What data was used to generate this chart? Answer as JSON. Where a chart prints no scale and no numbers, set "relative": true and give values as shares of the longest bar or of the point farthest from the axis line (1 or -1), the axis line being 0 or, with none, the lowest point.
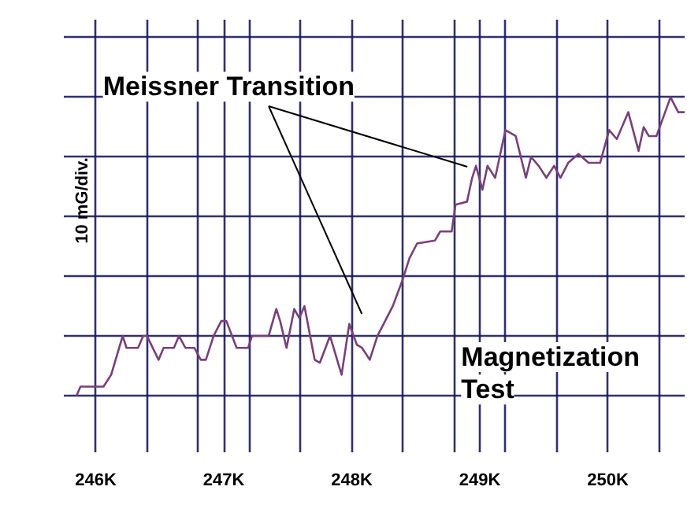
{
  "chart_data": {
    "type": "line",
    "relative": true,
    "ylabel": "10 mG/div.",
    "annotations": [
      "Meissner Transition",
      "Magnetization\nTest"
    ],
    "xlim": [
      245.75,
      250.6
    ],
    "xticks": [
      {
        "value": 246,
        "label": "246K"
      },
      {
        "value": 246.4,
        "label": null
      },
      {
        "value": 246.8,
        "label": null
      },
      {
        "value": 247,
        "label": "247K"
      },
      {
        "value": 247.2,
        "label": null
      },
      {
        "value": 247.6,
        "label": null
      },
      {
        "value": 248,
        "label": "248K"
      },
      {
        "value": 248.4,
        "label": null
      },
      {
        "value": 248.8,
        "label": null
      },
      {
        "value": 249,
        "label": "249K"
      },
      {
        "value": 249.2,
        "label": null
      },
      {
        "value": 249.6,
        "label": null
      },
      {
        "value": 250,
        "label": "250K"
      },
      {
        "value": 250.4,
        "label": null
      }
    ],
    "grid": true,
    "tick_labels": "x",
    "x": [
      245.85,
      245.88,
      246.06,
      246.12,
      246.21,
      246.24,
      246.33,
      246.37,
      246.4,
      246.49,
      246.53,
      246.61,
      246.65,
      246.7,
      246.77,
      246.82,
      246.86,
      246.92,
      246.98,
      247.02,
      247.1,
      247.19,
      247.22,
      247.35,
      247.41,
      247.44,
      247.49,
      247.55,
      247.59,
      247.63,
      247.71,
      247.75,
      247.83,
      247.92,
      247.98,
      248.04,
      248.08,
      248.14,
      248.2,
      248.32,
      248.39,
      248.45,
      248.51,
      248.65,
      248.69,
      248.78,
      248.81,
      248.9,
      248.94,
      248.97,
      249.02,
      249.06,
      249.12,
      249.2,
      249.28,
      249.36,
      249.4,
      249.46,
      249.52,
      249.58,
      249.63,
      249.69,
      249.77,
      249.85,
      249.94,
      250.01,
      250.07,
      250.16,
      250.24,
      250.28,
      250.32,
      250.38,
      250.49,
      250.55,
      250.6
    ],
    "series": [
      {
        "color": "#7a3f7a",
        "values": [
          0,
          0.03,
          0.03,
          0.07,
          0.2,
          0.16,
          0.16,
          0.2,
          0.2,
          0.12,
          0.16,
          0.16,
          0.2,
          0.16,
          0.16,
          0.12,
          0.12,
          0.2,
          0.25,
          0.25,
          0.16,
          0.16,
          0.2,
          0.2,
          0.29,
          0.25,
          0.16,
          0.29,
          0.26,
          0.3,
          0.12,
          0.11,
          0.2,
          0.07,
          0.24,
          0.17,
          0.16,
          0.12,
          0.2,
          0.3,
          0.38,
          0.46,
          0.51,
          0.52,
          0.55,
          0.55,
          0.64,
          0.65,
          0.73,
          0.77,
          0.69,
          0.77,
          0.73,
          0.89,
          0.87,
          0.73,
          0.8,
          0.77,
          0.73,
          0.77,
          0.73,
          0.78,
          0.81,
          0.78,
          0.78,
          0.89,
          0.86,
          0.95,
          0.82,
          0.9,
          0.87,
          0.87,
          1.0,
          0.95,
          0.95
        ]
      }
    ]
  }
}
